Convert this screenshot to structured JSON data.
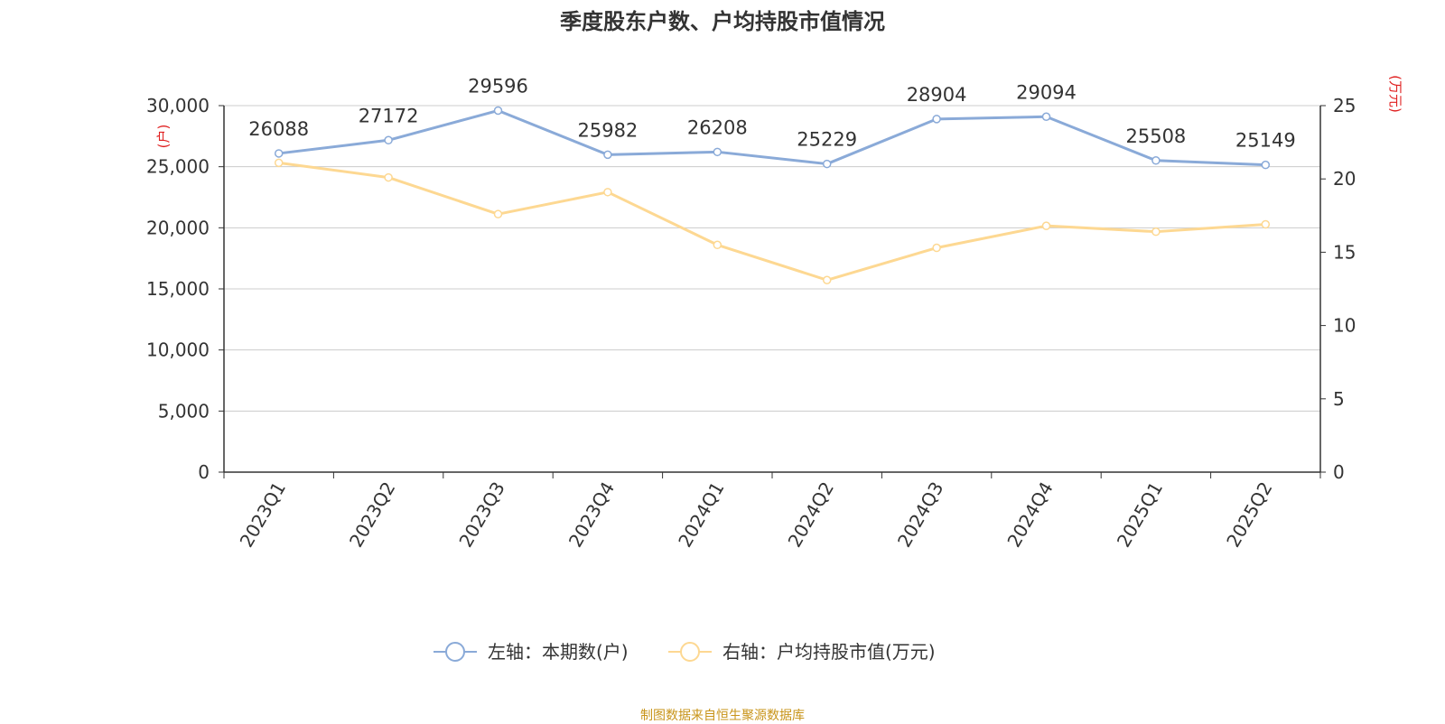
{
  "title": "季度股东户数、户均持股市值情况",
  "source": "制图数据来自恒生聚源数据库",
  "colors": {
    "left_series": "#8aaad8",
    "right_series": "#fdd892",
    "axis_unit": "#e02020",
    "source": "#c8941a"
  },
  "chart_data": {
    "type": "line",
    "categories": [
      "2023Q1",
      "2023Q2",
      "2023Q3",
      "2023Q4",
      "2024Q1",
      "2024Q2",
      "2024Q3",
      "2024Q4",
      "2025Q1",
      "2025Q2"
    ],
    "series": [
      {
        "name": "左轴：本期数(户)",
        "axis": "left",
        "values": [
          26088,
          27172,
          29596,
          25982,
          26208,
          25229,
          28904,
          29094,
          25508,
          25149
        ],
        "data_labels": true
      },
      {
        "name": "右轴：户均持股市值(万元)",
        "axis": "right",
        "values": [
          21.1,
          20.1,
          17.6,
          19.1,
          15.5,
          13.1,
          15.3,
          16.8,
          16.4,
          16.9
        ],
        "data_labels": false
      }
    ],
    "left_axis": {
      "unit": "(户)",
      "ylim": [
        0,
        30000
      ],
      "ticks": [
        0,
        5000,
        10000,
        15000,
        20000,
        25000,
        30000
      ],
      "tick_labels": [
        "0",
        "5,000",
        "10,000",
        "15,000",
        "20,000",
        "25,000",
        "30,000"
      ]
    },
    "right_axis": {
      "unit": "(万元)",
      "ylim": [
        0,
        25
      ],
      "ticks": [
        0,
        5,
        10,
        15,
        20,
        25
      ],
      "tick_labels": [
        "0",
        "5",
        "10",
        "15",
        "20",
        "25"
      ]
    },
    "grid": true,
    "legend_position": "bottom"
  }
}
